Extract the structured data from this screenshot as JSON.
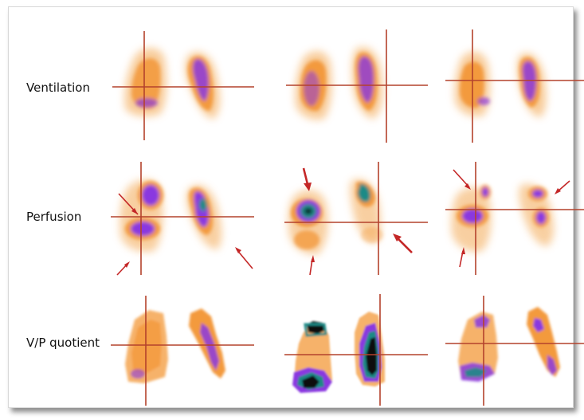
{
  "figure": {
    "rows": [
      {
        "label": "Ventilation"
      },
      {
        "label": "Perfusion"
      },
      {
        "label": "V/P quotient"
      }
    ]
  },
  "colors": {
    "hot_light": "#f7d2a4",
    "hot_mid": "#f39a3d",
    "hot_dark": "#e0661b",
    "purple": "#8a38e0",
    "purple_dark": "#5a1ca8",
    "teal": "#1f8a86",
    "black": "#0a0a0a",
    "crosshair": "#b4422c",
    "arrow": "#c42727",
    "frame_border": "#d8d8d8"
  }
}
